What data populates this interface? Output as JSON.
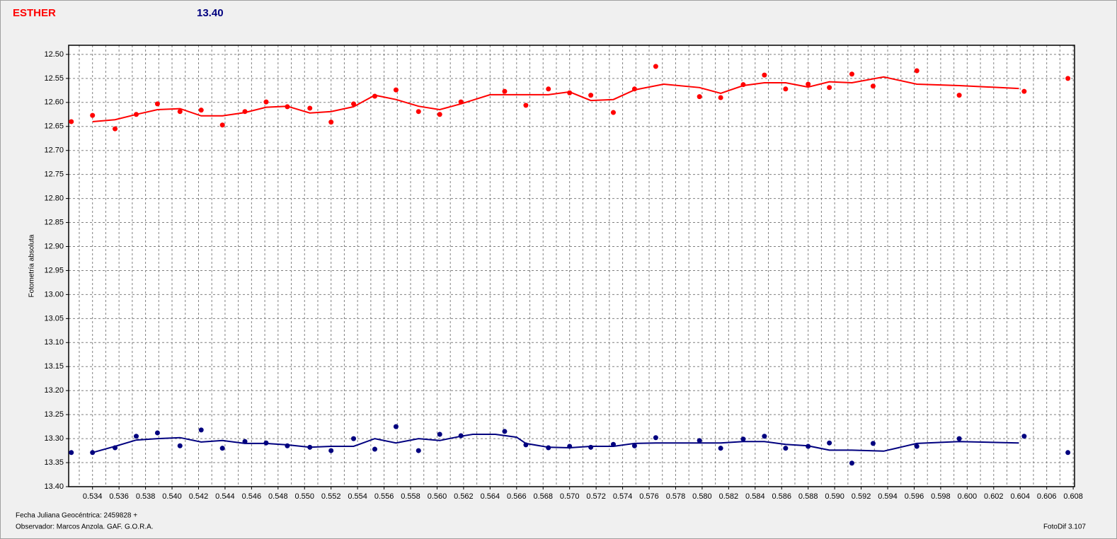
{
  "chart_data": {
    "type": "scatter",
    "title": "ESTHER",
    "subtitle": "13.40",
    "y_label": "Fotometría absoluta",
    "x_label": "Fecha Juliana Geocéntrica: 2459828 +",
    "observer": "Observador:  Marcos Anzola. GAF. G.O.R.A.",
    "software": "FotoDif 3.107",
    "xlim": [
      0.5322,
      0.6081
    ],
    "ylim": [
      12.481,
      13.4
    ],
    "y_inverted": true,
    "grid": true,
    "xticks": [
      0.534,
      0.536,
      0.538,
      {
        "value": 0.54,
        "label": "0.540"
      },
      0.542,
      0.544,
      0.546,
      0.548,
      {
        "value": 0.55,
        "label": "0.550"
      },
      0.552,
      0.554,
      0.556,
      0.558,
      {
        "value": 0.56,
        "label": "0.560"
      },
      0.562,
      0.564,
      0.566,
      0.568,
      {
        "value": 0.57,
        "label": "0.570"
      },
      0.572,
      0.574,
      0.576,
      0.578,
      {
        "value": 0.58,
        "label": "0.580"
      },
      0.582,
      0.584,
      0.586,
      0.588,
      {
        "value": 0.59,
        "label": "0.590"
      },
      0.592,
      0.594,
      0.596,
      0.598,
      {
        "value": 0.6,
        "label": "0.600"
      },
      0.602,
      0.604,
      0.606,
      0.608
    ],
    "yticks": [
      {
        "value": 12.5,
        "label": "12.50"
      },
      12.55,
      {
        "value": 12.6,
        "label": "12.60"
      },
      12.65,
      {
        "value": 12.7,
        "label": "12.70"
      },
      12.75,
      {
        "value": 12.8,
        "label": "12.80"
      },
      12.85,
      {
        "value": 12.9,
        "label": "12.90"
      },
      12.95,
      {
        "value": 13,
        "label": "13.00"
      },
      13.05,
      {
        "value": 13.1,
        "label": "13.10"
      },
      13.15,
      {
        "value": 13.2,
        "label": "13.20"
      },
      13.25,
      {
        "value": 13.3,
        "label": "13.30"
      },
      13.35,
      {
        "value": 13.4,
        "label": "13.40"
      }
    ],
    "series": [
      {
        "color": "#ff0000",
        "mode": "markers",
        "x": [
          0.5324,
          0.534,
          0.5357,
          0.5373,
          0.5389,
          0.5406,
          0.5422,
          0.5438,
          0.5455,
          0.5471,
          0.5487,
          0.5504,
          0.552,
          0.5537,
          0.5553,
          0.5569,
          0.5586,
          0.5602,
          0.5618,
          0.5651,
          0.5667,
          0.5684,
          0.57,
          0.5716,
          0.5733,
          0.5749,
          0.5765,
          0.5798,
          0.5814,
          0.5831,
          0.5847,
          0.5863,
          0.588,
          0.5896,
          0.5913,
          0.5929,
          0.5962,
          0.5994,
          0.6043,
          0.6076
        ],
        "values": [
          12.64,
          12.627,
          12.655,
          12.625,
          12.603,
          12.619,
          12.616,
          12.647,
          12.619,
          12.599,
          12.609,
          12.612,
          12.641,
          12.603,
          12.587,
          12.574,
          12.619,
          12.625,
          12.599,
          12.577,
          12.606,
          12.572,
          12.58,
          12.585,
          12.621,
          12.572,
          12.525,
          12.588,
          12.59,
          12.563,
          12.543,
          12.572,
          12.562,
          12.569,
          12.541,
          12.566,
          12.534,
          12.585,
          12.577,
          12.55
        ]
      },
      {
        "color": "#ff0000",
        "mode": "lines",
        "x": [
          0.534,
          0.5357,
          0.5373,
          0.5389,
          0.5406,
          0.5422,
          0.5438,
          0.5455,
          0.5471,
          0.5487,
          0.5504,
          0.552,
          0.5537,
          0.5553,
          0.5569,
          0.5586,
          0.5602,
          0.5618,
          0.564,
          0.5684,
          0.57,
          0.5716,
          0.5733,
          0.5749,
          0.5771,
          0.5798,
          0.5814,
          0.5831,
          0.5847,
          0.5863,
          0.588,
          0.5896,
          0.5913,
          0.5937,
          0.5962,
          0.5994,
          0.6039
        ],
        "values": [
          12.64,
          12.636,
          12.625,
          12.615,
          12.613,
          12.628,
          12.628,
          12.621,
          12.61,
          12.608,
          12.622,
          12.619,
          12.609,
          12.585,
          12.594,
          12.608,
          12.615,
          12.603,
          12.584,
          12.584,
          12.578,
          12.596,
          12.594,
          12.574,
          12.562,
          12.569,
          12.581,
          12.565,
          12.559,
          12.559,
          12.568,
          12.557,
          12.559,
          12.547,
          12.562,
          12.565,
          12.571
        ]
      },
      {
        "color": "#00007f",
        "mode": "markers",
        "x": [
          0.5324,
          0.534,
          0.5357,
          0.5373,
          0.5389,
          0.5406,
          0.5422,
          0.5438,
          0.5455,
          0.5471,
          0.5487,
          0.5504,
          0.552,
          0.5537,
          0.5553,
          0.5569,
          0.5586,
          0.5602,
          0.5618,
          0.5651,
          0.5667,
          0.5684,
          0.57,
          0.5716,
          0.5733,
          0.5749,
          0.5765,
          0.5798,
          0.5814,
          0.5831,
          0.5847,
          0.5863,
          0.588,
          0.5896,
          0.5913,
          0.5929,
          0.5962,
          0.5994,
          0.6043,
          0.6076
        ],
        "values": [
          13.329,
          13.329,
          13.319,
          13.295,
          13.288,
          13.315,
          13.282,
          13.32,
          13.306,
          13.309,
          13.315,
          13.318,
          13.325,
          13.3,
          13.322,
          13.275,
          13.325,
          13.291,
          13.294,
          13.285,
          13.313,
          13.319,
          13.316,
          13.318,
          13.312,
          13.315,
          13.298,
          13.304,
          13.32,
          13.301,
          13.295,
          13.32,
          13.316,
          13.309,
          13.351,
          13.31,
          13.316,
          13.3,
          13.295,
          13.329
        ]
      },
      {
        "color": "#00007f",
        "mode": "lines",
        "x": [
          0.534,
          0.5357,
          0.5373,
          0.5389,
          0.5406,
          0.5422,
          0.5438,
          0.5455,
          0.5471,
          0.5487,
          0.5504,
          0.552,
          0.5537,
          0.5553,
          0.5569,
          0.5586,
          0.5602,
          0.5618,
          0.5627,
          0.5644,
          0.566,
          0.5667,
          0.5684,
          0.57,
          0.5716,
          0.5733,
          0.5749,
          0.5765,
          0.5814,
          0.5831,
          0.5847,
          0.5863,
          0.588,
          0.5896,
          0.5913,
          0.5937,
          0.5962,
          0.5994,
          0.6039
        ],
        "values": [
          13.329,
          13.316,
          13.303,
          13.3,
          13.298,
          13.307,
          13.304,
          13.31,
          13.31,
          13.313,
          13.318,
          13.316,
          13.316,
          13.3,
          13.309,
          13.3,
          13.304,
          13.295,
          13.291,
          13.291,
          13.297,
          13.31,
          13.318,
          13.319,
          13.316,
          13.316,
          13.31,
          13.309,
          13.309,
          13.306,
          13.306,
          13.312,
          13.315,
          13.324,
          13.324,
          13.326,
          13.31,
          13.306,
          13.309
        ]
      }
    ]
  }
}
